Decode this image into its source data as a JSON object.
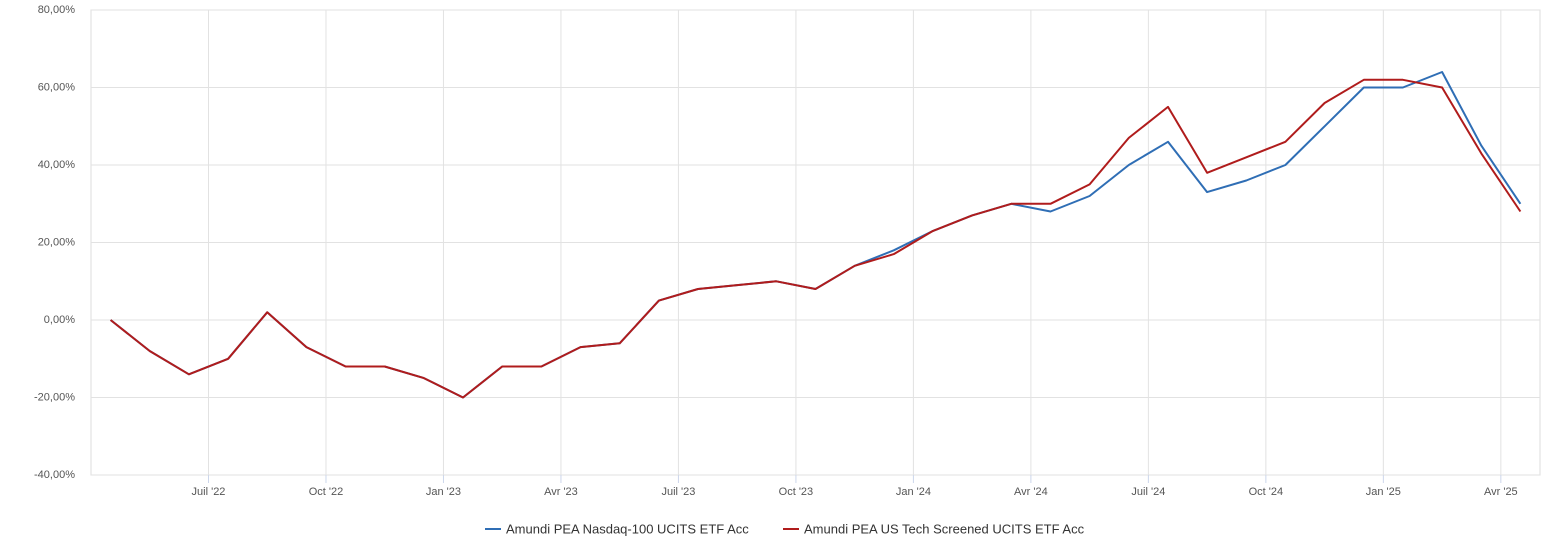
{
  "chart_data": {
    "type": "line",
    "x": [
      "2022-04",
      "2022-05",
      "2022-06",
      "2022-07",
      "2022-08",
      "2022-09",
      "2022-10",
      "2022-11",
      "2022-12",
      "2023-01",
      "2023-02",
      "2023-03",
      "2023-04",
      "2023-05",
      "2023-06",
      "2023-07",
      "2023-08",
      "2023-09",
      "2023-10",
      "2023-11",
      "2023-12",
      "2024-01",
      "2024-02",
      "2024-03",
      "2024-04",
      "2024-05",
      "2024-06",
      "2024-07",
      "2024-08",
      "2024-09",
      "2024-10",
      "2024-11",
      "2024-12",
      "2025-01",
      "2025-02",
      "2025-03",
      "2025-04"
    ],
    "series": [
      {
        "name": "Amundi PEA Nasdaq-100 UCITS ETF Acc",
        "color": "#2f6eb5",
        "values": [
          0,
          -8,
          -14,
          -10,
          2,
          -7,
          -12,
          -12,
          -15,
          -20,
          -12,
          -12,
          -7,
          -6,
          5,
          8,
          9,
          10,
          8,
          14,
          18,
          23,
          27,
          30,
          28,
          32,
          40,
          46,
          33,
          36,
          40,
          50,
          60,
          60,
          64,
          45,
          30
        ]
      },
      {
        "name": "Amundi PEA US Tech Screened UCITS ETF Acc",
        "color": "#b01c1c",
        "values": [
          0,
          -8,
          -14,
          -10,
          2,
          -7,
          -12,
          -12,
          -15,
          -20,
          -12,
          -12,
          -7,
          -6,
          5,
          8,
          9,
          10,
          8,
          14,
          17,
          23,
          27,
          30,
          30,
          35,
          47,
          55,
          38,
          42,
          46,
          56,
          62,
          62,
          60,
          43,
          28
        ]
      }
    ],
    "xlim": [
      "2022-04",
      "2025-05"
    ],
    "xticks": [
      {
        "value": "2022-07",
        "label": "Juil '22"
      },
      {
        "value": "2022-10",
        "label": "Oct '22"
      },
      {
        "value": "2023-01",
        "label": "Jan '23"
      },
      {
        "value": "2023-04",
        "label": "Avr '23"
      },
      {
        "value": "2023-07",
        "label": "Juil '23"
      },
      {
        "value": "2023-10",
        "label": "Oct '23"
      },
      {
        "value": "2024-01",
        "label": "Jan '24"
      },
      {
        "value": "2024-04",
        "label": "Avr '24"
      },
      {
        "value": "2024-07",
        "label": "Juil '24"
      },
      {
        "value": "2024-10",
        "label": "Oct '24"
      },
      {
        "value": "2025-01",
        "label": "Jan '25"
      },
      {
        "value": "2025-04",
        "label": "Avr '25"
      }
    ],
    "ylim": [
      -40,
      80
    ],
    "yticks": [
      {
        "value": -40,
        "label": "-40,00%"
      },
      {
        "value": -20,
        "label": "-20,00%"
      },
      {
        "value": 0,
        "label": "0,00%"
      },
      {
        "value": 20,
        "label": "20,00%"
      },
      {
        "value": 40,
        "label": "40,00%"
      },
      {
        "value": 60,
        "label": "60,00%"
      },
      {
        "value": 80,
        "label": "80,00%"
      }
    ],
    "grid": true,
    "legend": "bottom"
  }
}
